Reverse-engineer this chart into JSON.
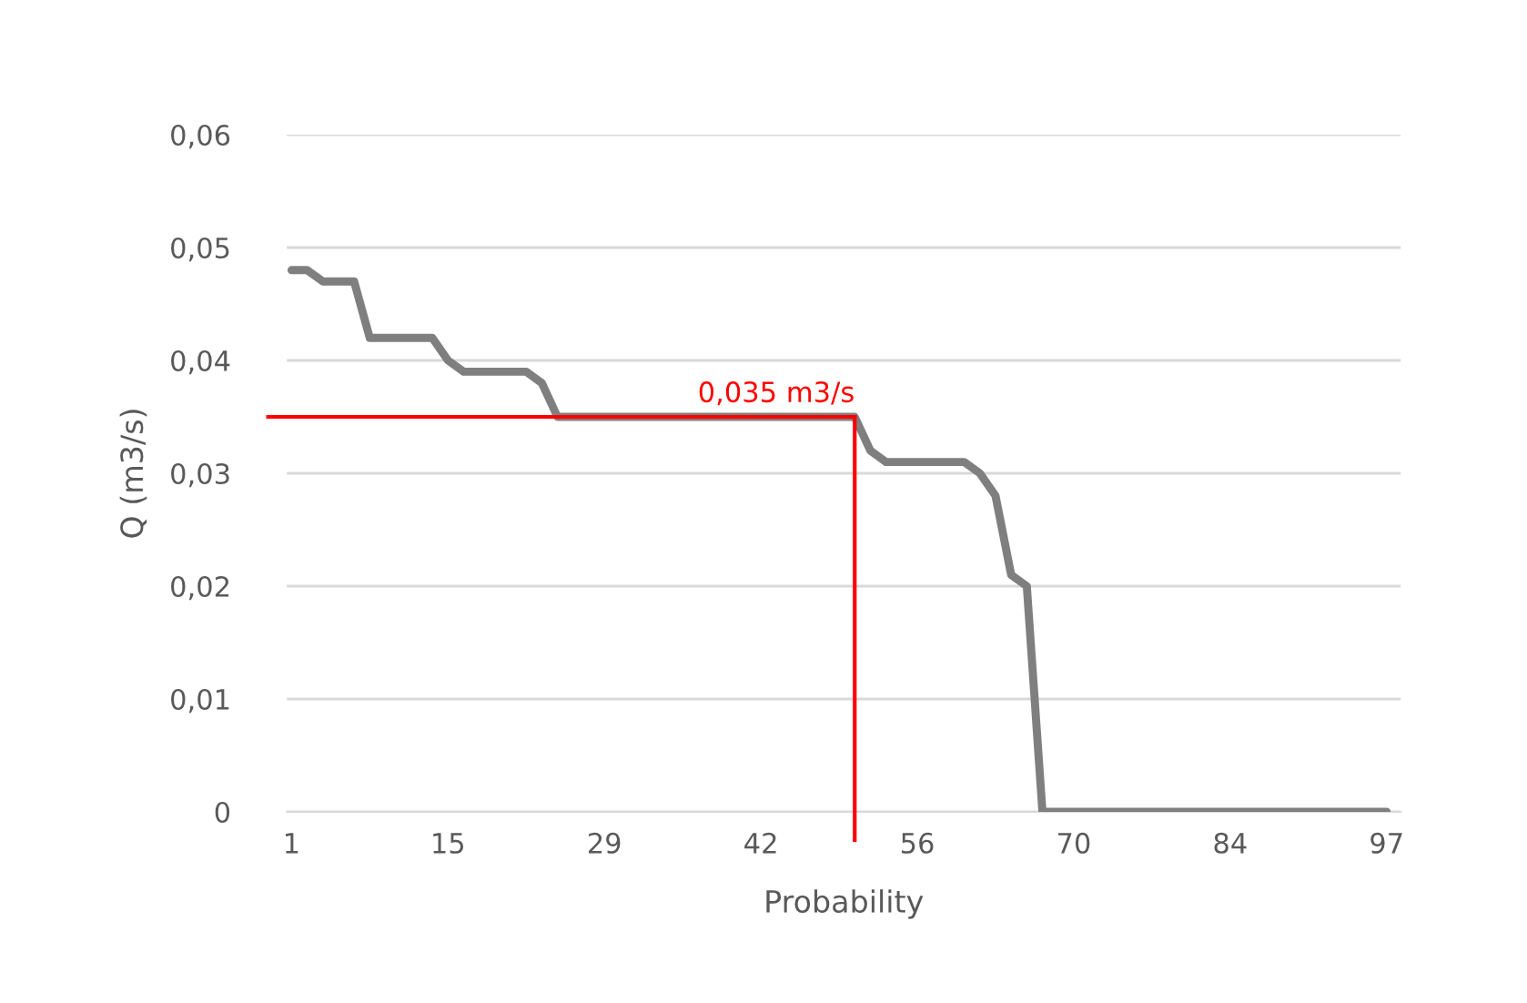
{
  "chart_data": {
    "type": "line",
    "xlabel": "Probability",
    "ylabel": "Q (m3/s)",
    "categories": [
      "1",
      null,
      null,
      null,
      null,
      null,
      null,
      null,
      null,
      null,
      "15",
      null,
      null,
      null,
      null,
      null,
      null,
      null,
      null,
      null,
      "29",
      null,
      null,
      null,
      null,
      null,
      null,
      null,
      null,
      null,
      "42",
      null,
      null,
      null,
      null,
      null,
      null,
      null,
      null,
      null,
      "56",
      null,
      null,
      null,
      null,
      null,
      null,
      null,
      null,
      null,
      "70",
      null,
      null,
      null,
      null,
      null,
      null,
      null,
      null,
      null,
      "84",
      null,
      null,
      null,
      null,
      null,
      null,
      null,
      null,
      null,
      "97"
    ],
    "series": [
      {
        "color": "#7f7f7f",
        "values": [
          0.048,
          0.048,
          0.047,
          0.047,
          0.047,
          0.042,
          0.042,
          0.042,
          0.042,
          0.042,
          0.04,
          0.039,
          0.039,
          0.039,
          0.039,
          0.039,
          0.038,
          0.035,
          0.035,
          0.035,
          0.035,
          0.035,
          0.035,
          0.035,
          0.035,
          0.035,
          0.035,
          0.035,
          0.035,
          0.035,
          0.035,
          0.035,
          0.035,
          0.035,
          0.035,
          0.035,
          0.035,
          0.032,
          0.031,
          0.031,
          0.031,
          0.031,
          0.031,
          0.031,
          0.03,
          0.028,
          0.021,
          0.02,
          0,
          0,
          0,
          0,
          0,
          0,
          0,
          0,
          0,
          0,
          0,
          0,
          0,
          0,
          0,
          0,
          0,
          0,
          0,
          0,
          0,
          0,
          0
        ]
      }
    ],
    "ylim": [
      0,
      0.06
    ],
    "yticks": [
      0,
      {
        "value": 0.01,
        "label": "0,01"
      },
      {
        "value": 0.02,
        "label": "0,02"
      },
      {
        "value": 0.03,
        "label": "0,03"
      },
      {
        "value": 0.04,
        "label": "0,04"
      },
      {
        "value": 0.05,
        "label": "0,05"
      },
      {
        "value": 0.06,
        "label": "0,06"
      }
    ],
    "grid": "y",
    "marker": "none",
    "line_style": "solid",
    "ref_lines": [
      {
        "axis": "y",
        "value": 0.035,
        "label": "0,035 m3/s",
        "color": "#ff0000"
      }
    ]
  }
}
